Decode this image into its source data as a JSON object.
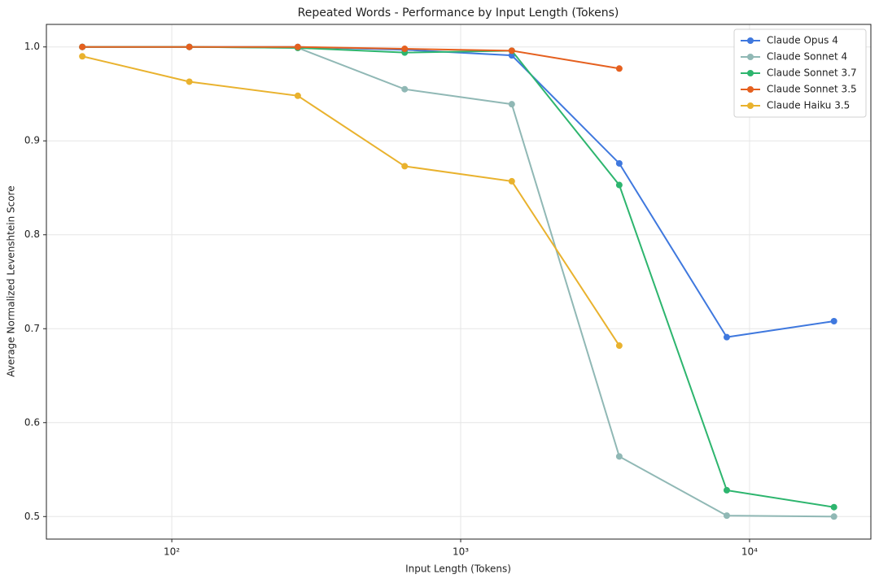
{
  "chart_data": {
    "type": "line",
    "title": "Repeated Words - Performance by Input Length (Tokens)",
    "xlabel": "Input Length (Tokens)",
    "ylabel": "Average Normalized Levenshtein Score",
    "x": [
      49,
      115,
      273,
      640,
      1503,
      3540,
      8340,
      19600
    ],
    "xscale": "log",
    "xlim": [
      36.8,
      26300
    ],
    "xticks": [
      {
        "value": 100,
        "label": "10²"
      },
      {
        "value": 1000,
        "label": "10³"
      },
      {
        "value": 10000,
        "label": "10⁴"
      }
    ],
    "ylim": [
      0.476,
      1.024
    ],
    "yticks": [
      0.5,
      0.6,
      0.7,
      0.8,
      0.9,
      {
        "value": 1,
        "label": "1.0"
      }
    ],
    "grid": true,
    "legend": "upper right",
    "series": [
      {
        "name": "Claude Opus 4",
        "color": "#3f78de",
        "values": [
          1.0,
          1.0,
          1.0,
          0.997,
          0.991,
          0.876,
          0.691,
          0.708
        ]
      },
      {
        "name": "Claude Sonnet 4",
        "color": "#90b8b5",
        "values": [
          1.0,
          1.0,
          0.999,
          0.955,
          0.939,
          0.564,
          0.501,
          0.5
        ]
      },
      {
        "name": "Claude Sonnet 3.7",
        "color": "#2db56e",
        "values": [
          1.0,
          1.0,
          0.999,
          0.994,
          0.996,
          0.853,
          0.528,
          0.51
        ]
      },
      {
        "name": "Claude Sonnet 3.5",
        "color": "#e5601f",
        "values": [
          1.0,
          1.0,
          1.0,
          0.998,
          0.996,
          0.977,
          null,
          null
        ]
      },
      {
        "name": "Claude Haiku 3.5",
        "color": "#e9b22e",
        "values": [
          0.99,
          0.963,
          0.948,
          0.873,
          0.857,
          0.682,
          null,
          null
        ]
      }
    ]
  }
}
